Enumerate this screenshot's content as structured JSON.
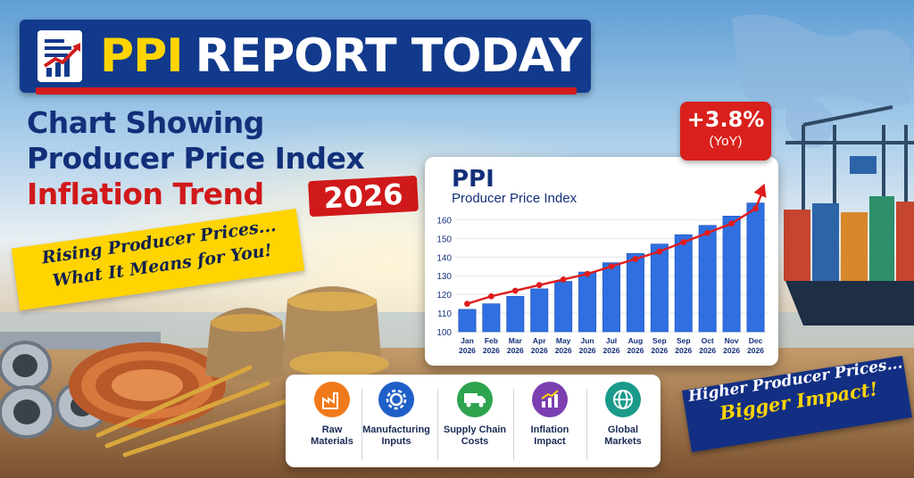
{
  "banner": {
    "ppi": "PPI",
    "rest": "REPORT TODAY"
  },
  "headline": {
    "line1": "Chart Showing",
    "line2": "Producer Price Index",
    "line3": "Inflation Trend",
    "year": "2026"
  },
  "ribbon_left": {
    "line1": "Rising Producer Prices...",
    "line2": "What It Means for You!"
  },
  "yoy_callout": {
    "value": "+3.8%",
    "label": "(YoY)"
  },
  "ribbon_right": {
    "line1": "Higher Producer Prices...",
    "line2": "Bigger Impact!"
  },
  "tiles": [
    {
      "label1": "Raw",
      "label2": "Materials",
      "icon": "factory-icon",
      "color": "#f07a1a"
    },
    {
      "label1": "Manufacturing",
      "label2": "Inputs",
      "icon": "gear-icon",
      "color": "#1f5fc8"
    },
    {
      "label1": "Supply Chain",
      "label2": "Costs",
      "icon": "truck-icon",
      "color": "#2ea44f"
    },
    {
      "label1": "Inflation",
      "label2": "Impact",
      "icon": "trend-chart-icon",
      "color": "#7b3fb0"
    },
    {
      "label1": "Global",
      "label2": "Markets",
      "icon": "globe-icon",
      "color": "#1a9a8a"
    }
  ],
  "chart_data": {
    "type": "bar",
    "title": "PPI",
    "subtitle": "Producer Price Index",
    "categories": [
      [
        "Jan",
        "2026"
      ],
      [
        "Feb",
        "2026"
      ],
      [
        "Mar",
        "2026"
      ],
      [
        "Apr",
        "2026"
      ],
      [
        "May",
        "2026"
      ],
      [
        "Jun",
        "2026"
      ],
      [
        "Jul",
        "2026"
      ],
      [
        "Aug",
        "2026"
      ],
      [
        "Sep",
        "2026"
      ],
      [
        "Sep",
        "2026"
      ],
      [
        "Oct",
        "2026"
      ],
      [
        "Nov",
        "2026"
      ],
      [
        "Dec",
        "2026"
      ]
    ],
    "values": [
      112,
      115,
      119,
      123,
      127,
      132,
      137,
      142,
      147,
      152,
      157,
      162,
      169
    ],
    "trend_line": [
      115,
      119,
      122,
      125,
      128,
      131,
      135,
      139,
      143,
      148,
      153,
      158,
      166
    ],
    "ylim": [
      100,
      165
    ],
    "yticks": [
      100,
      110,
      120,
      130,
      140,
      150,
      160
    ],
    "grid": true,
    "colors": {
      "bar": "#2f6fe0",
      "bar_dark": "#1d4fb8",
      "trend": "#e01c1c",
      "text": "#12307a"
    }
  }
}
